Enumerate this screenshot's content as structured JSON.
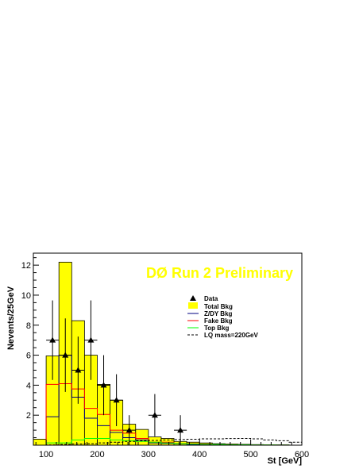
{
  "chart_data": {
    "type": "histogram",
    "banner": "DØ Run 2 Preliminary",
    "xlabel": "St [GeV]",
    "ylabel": "Nevents/25GeV",
    "xlim": [
      75,
      600
    ],
    "ylim": [
      0,
      12.8
    ],
    "xticks": [
      100,
      200,
      300,
      400,
      500,
      600
    ],
    "yticks": [
      2,
      4,
      6,
      8,
      10,
      12
    ],
    "bin_edges": [
      75,
      100,
      125,
      150,
      175,
      200,
      225,
      250,
      275,
      300,
      325,
      350,
      375,
      400,
      425,
      450,
      475,
      500,
      525,
      550,
      575,
      600
    ],
    "series": [
      {
        "name": "Total Bkg",
        "style": "filled",
        "color": "#ffff00",
        "values": [
          0.4,
          5.95,
          12.2,
          8.3,
          6.0,
          4.05,
          3.0,
          1.4,
          1.05,
          0.55,
          0.45,
          0.25,
          0.2,
          0.15,
          0.1,
          0.08,
          0.06,
          0.04,
          0.03,
          0.02,
          0.0
        ]
      },
      {
        "name": "Z/DY Bkg",
        "style": "line",
        "color": "#000080",
        "values": [
          0.0,
          1.9,
          6.0,
          3.2,
          1.8,
          1.3,
          0.85,
          0.5,
          0.35,
          0.15,
          0.12,
          0.08,
          0.05,
          0.04,
          0.03,
          0.02,
          0.02,
          0.01,
          0.01,
          0.02,
          0.0
        ]
      },
      {
        "name": "Fake Bkg",
        "style": "line",
        "color": "#ff0000",
        "values": [
          0.0,
          4.05,
          4.1,
          3.75,
          2.45,
          2.05,
          1.0,
          0.8,
          0.45,
          0.2,
          0.2,
          0.1,
          0.1,
          0.08,
          0.06,
          0.05,
          0.03,
          0.02,
          0.02,
          0.01,
          0.0
        ]
      },
      {
        "name": "Top Bkg",
        "style": "line",
        "color": "#00ff00",
        "values": [
          0.0,
          0.15,
          0.15,
          0.35,
          0.45,
          0.45,
          0.35,
          0.3,
          0.25,
          0.2,
          0.15,
          0.1,
          0.08,
          0.06,
          0.05,
          0.04,
          0.03,
          0.02,
          0.02,
          0.01,
          0.0
        ]
      },
      {
        "name": "LQ mass=220GeV",
        "style": "dashed",
        "color": "#000000",
        "values": [
          0.0,
          0.02,
          0.05,
          0.08,
          0.1,
          0.15,
          0.2,
          0.25,
          0.3,
          0.32,
          0.35,
          0.38,
          0.4,
          0.42,
          0.42,
          0.44,
          0.45,
          0.42,
          0.35,
          0.3,
          0.2
        ]
      }
    ],
    "data": {
      "name": "Data",
      "points": [
        {
          "x": 112.5,
          "y": 7,
          "err": 2.65
        },
        {
          "x": 137.5,
          "y": 6,
          "err": 2.45
        },
        {
          "x": 162.5,
          "y": 5,
          "err": 2.24
        },
        {
          "x": 187.5,
          "y": 7,
          "err": 2.65
        },
        {
          "x": 212.5,
          "y": 4,
          "err": 2.0
        },
        {
          "x": 237.5,
          "y": 3,
          "err": 1.73
        },
        {
          "x": 262.5,
          "y": 1,
          "err": 1.0
        },
        {
          "x": 312.5,
          "y": 2,
          "err": 1.41
        },
        {
          "x": 362.5,
          "y": 1,
          "err": 1.0
        }
      ]
    },
    "legend_entries": [
      "Data",
      "Total Bkg",
      "Z/DY Bkg",
      "Fake Bkg",
      "Top Bkg",
      "LQ mass=220GeV"
    ],
    "legend_position": "top-right",
    "grid": false,
    "banner_color": "#ffff00"
  }
}
